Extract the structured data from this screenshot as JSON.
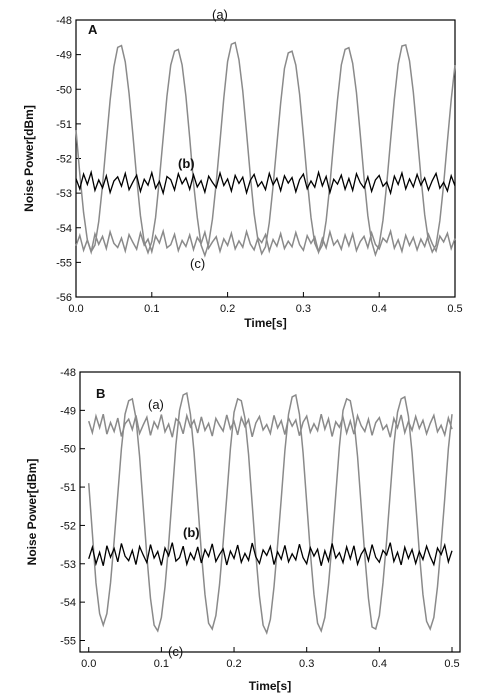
{
  "chart_data": [
    {
      "type": "line",
      "panel": "A",
      "x_label": "Time[s]",
      "y_label": "Noise Power[dBm]",
      "x": [
        0,
        0.005,
        0.01,
        0.015,
        0.02,
        0.025,
        0.03,
        0.035,
        0.04,
        0.045,
        0.05,
        0.055,
        0.06,
        0.065,
        0.07,
        0.075,
        0.08,
        0.085,
        0.09,
        0.095,
        0.1,
        0.105,
        0.11,
        0.115,
        0.12,
        0.125,
        0.13,
        0.135,
        0.14,
        0.145,
        0.15,
        0.155,
        0.16,
        0.165,
        0.17,
        0.175,
        0.18,
        0.185,
        0.19,
        0.195,
        0.2,
        0.205,
        0.21,
        0.215,
        0.22,
        0.225,
        0.23,
        0.235,
        0.24,
        0.245,
        0.25,
        0.255,
        0.26,
        0.265,
        0.27,
        0.275,
        0.28,
        0.285,
        0.29,
        0.295,
        0.3,
        0.305,
        0.31,
        0.315,
        0.32,
        0.325,
        0.33,
        0.335,
        0.34,
        0.345,
        0.35,
        0.355,
        0.36,
        0.365,
        0.37,
        0.375,
        0.38,
        0.385,
        0.39,
        0.395,
        0.4,
        0.405,
        0.41,
        0.415,
        0.42,
        0.425,
        0.43,
        0.435,
        0.44,
        0.445,
        0.45,
        0.455,
        0.46,
        0.465,
        0.47,
        0.475,
        0.48,
        0.485,
        0.49,
        0.495,
        0.5
      ],
      "series": [
        {
          "name": "(a)",
          "color": "#8a8a8a",
          "values": [
            -51.18,
            -52.44,
            -53.56,
            -54.36,
            -54.69,
            -54.5,
            -53.82,
            -52.77,
            -51.53,
            -50.32,
            -49.35,
            -48.79,
            -48.74,
            -49.21,
            -50.12,
            -51.3,
            -52.55,
            -53.65,
            -54.41,
            -54.72,
            -54.4,
            -53.7,
            -52.6,
            -51.4,
            -50.2,
            -49.3,
            -48.9,
            -48.85,
            -49.3,
            -50.2,
            -51.4,
            -52.7,
            -53.7,
            -54.5,
            -54.8,
            -54.45,
            -53.75,
            -52.7,
            -51.5,
            -50.25,
            -49.2,
            -48.7,
            -48.65,
            -49.15,
            -50.05,
            -51.25,
            -52.5,
            -53.6,
            -54.35,
            -54.75,
            -54.55,
            -53.85,
            -52.8,
            -51.6,
            -50.4,
            -49.4,
            -48.95,
            -48.9,
            -49.3,
            -50.15,
            -51.35,
            -52.6,
            -53.7,
            -54.45,
            -54.7,
            -54.5,
            -53.8,
            -52.75,
            -51.5,
            -50.3,
            -49.3,
            -48.85,
            -48.8,
            -49.25,
            -50.1,
            -51.3,
            -52.55,
            -53.65,
            -54.4,
            -54.78,
            -54.48,
            -53.78,
            -52.72,
            -51.48,
            -50.28,
            -49.28,
            -48.75,
            -48.72,
            -49.18,
            -50.08,
            -51.28,
            -52.52,
            -53.62,
            -54.38,
            -54.7,
            -54.5,
            -53.8,
            -52.75,
            -51.5,
            -50.3,
            -49.3
          ]
        },
        {
          "name": "(b)",
          "color": "#000000",
          "values": [
            -52.58,
            -52.88,
            -52.45,
            -52.75,
            -52.4,
            -52.92,
            -52.62,
            -52.85,
            -52.5,
            -52.98,
            -52.65,
            -52.53,
            -52.8,
            -52.43,
            -52.9,
            -52.68,
            -52.48,
            -52.95,
            -52.6,
            -52.77,
            -52.41,
            -52.86,
            -52.66,
            -53.0,
            -52.52,
            -52.61,
            -52.91,
            -52.44,
            -52.73,
            -52.56,
            -52.89,
            -52.47,
            -52.82,
            -52.64,
            -52.97,
            -52.51,
            -52.69,
            -52.84,
            -52.42,
            -52.78,
            -52.59,
            -52.94,
            -52.49,
            -52.72,
            -52.54,
            -52.99,
            -52.63,
            -52.46,
            -52.81,
            -52.67,
            -52.9,
            -52.43,
            -52.76,
            -52.57,
            -52.93,
            -52.5,
            -52.71,
            -52.55,
            -52.96,
            -52.61,
            -52.45,
            -52.87,
            -52.65,
            -52.83,
            -52.4,
            -52.79,
            -52.52,
            -52.98,
            -52.6,
            -52.74,
            -52.48,
            -52.89,
            -52.58,
            -52.92,
            -52.44,
            -52.7,
            -52.85,
            -52.53,
            -52.95,
            -52.62,
            -52.49,
            -52.8,
            -52.68,
            -53.0,
            -52.51,
            -52.75,
            -52.42,
            -52.88,
            -52.59,
            -52.82,
            -52.46,
            -52.77,
            -52.56,
            -52.91,
            -52.64,
            -52.43,
            -52.86,
            -52.69,
            -52.94,
            -52.5,
            -52.79
          ]
        },
        {
          "name": "(c)",
          "color": "#8a8a8a",
          "values": [
            -54.52,
            -54.22,
            -54.65,
            -54.35,
            -54.7,
            -54.18,
            -54.48,
            -54.25,
            -54.6,
            -54.12,
            -54.45,
            -54.57,
            -54.3,
            -54.67,
            -54.2,
            -54.42,
            -54.62,
            -54.15,
            -54.5,
            -54.33,
            -54.69,
            -54.24,
            -54.44,
            -54.1,
            -54.58,
            -54.49,
            -54.19,
            -54.66,
            -54.37,
            -54.54,
            -54.21,
            -54.63,
            -54.28,
            -54.46,
            -54.13,
            -54.59,
            -54.41,
            -54.26,
            -54.68,
            -54.32,
            -54.51,
            -54.16,
            -54.61,
            -54.38,
            -54.56,
            -54.11,
            -54.47,
            -54.64,
            -54.29,
            -54.43,
            -54.2,
            -54.67,
            -54.34,
            -54.53,
            -54.17,
            -54.6,
            -54.39,
            -54.55,
            -54.14,
            -54.49,
            -54.65,
            -54.23,
            -54.45,
            -54.27,
            -54.7,
            -54.31,
            -54.58,
            -54.12,
            -54.5,
            -54.36,
            -54.62,
            -54.21,
            -54.52,
            -54.18,
            -54.66,
            -54.4,
            -54.25,
            -54.57,
            -54.15,
            -54.48,
            -54.61,
            -54.3,
            -54.42,
            -54.1,
            -54.59,
            -54.35,
            -54.68,
            -54.22,
            -54.51,
            -54.28,
            -54.64,
            -54.33,
            -54.54,
            -54.19,
            -54.46,
            -54.67,
            -54.24,
            -54.41,
            -54.16,
            -54.6,
            -54.31
          ]
        }
      ],
      "xlim": [
        0,
        0.5
      ],
      "xticks": [
        {
          "value": 0,
          "label": "0.0"
        },
        0.1,
        0.2,
        0.3,
        0.4,
        0.5
      ],
      "ylim": [
        -56,
        -48
      ],
      "yticks": [
        -56,
        -55,
        -54,
        -53,
        -52,
        -51,
        -50,
        -49,
        -48
      ]
    },
    {
      "type": "line",
      "panel": "B",
      "x_label": "Time[s]",
      "y_label": "Noise Power[dBm]",
      "x": [
        0,
        0.005,
        0.01,
        0.015,
        0.02,
        0.025,
        0.03,
        0.035,
        0.04,
        0.045,
        0.05,
        0.055,
        0.06,
        0.065,
        0.07,
        0.075,
        0.08,
        0.085,
        0.09,
        0.095,
        0.1,
        0.105,
        0.11,
        0.115,
        0.12,
        0.125,
        0.13,
        0.135,
        0.14,
        0.145,
        0.15,
        0.155,
        0.16,
        0.165,
        0.17,
        0.175,
        0.18,
        0.185,
        0.19,
        0.195,
        0.2,
        0.205,
        0.21,
        0.215,
        0.22,
        0.225,
        0.23,
        0.235,
        0.24,
        0.245,
        0.25,
        0.255,
        0.26,
        0.265,
        0.27,
        0.275,
        0.28,
        0.285,
        0.29,
        0.295,
        0.3,
        0.305,
        0.31,
        0.315,
        0.32,
        0.325,
        0.33,
        0.335,
        0.34,
        0.345,
        0.35,
        0.355,
        0.36,
        0.365,
        0.37,
        0.375,
        0.38,
        0.385,
        0.39,
        0.395,
        0.4,
        0.405,
        0.41,
        0.415,
        0.42,
        0.425,
        0.43,
        0.435,
        0.44,
        0.445,
        0.45,
        0.455,
        0.46,
        0.465,
        0.47,
        0.475,
        0.48,
        0.485,
        0.49,
        0.495,
        0.5
      ],
      "series": [
        {
          "name": "(a)",
          "color": "#8a8a8a",
          "values": [
            -50.9,
            -52.2,
            -53.5,
            -54.3,
            -54.6,
            -54.3,
            -53.5,
            -52.4,
            -51.2,
            -50.0,
            -49.1,
            -48.75,
            -48.7,
            -49.2,
            -50.2,
            -51.5,
            -52.8,
            -53.9,
            -54.6,
            -54.75,
            -54.4,
            -53.6,
            -52.5,
            -51.2,
            -49.9,
            -49.0,
            -48.6,
            -48.55,
            -49.1,
            -50.1,
            -51.4,
            -52.7,
            -53.8,
            -54.55,
            -54.7,
            -54.35,
            -53.55,
            -52.45,
            -51.25,
            -50.0,
            -49.05,
            -48.7,
            -48.75,
            -49.2,
            -50.15,
            -51.45,
            -52.75,
            -53.85,
            -54.6,
            -54.8,
            -54.45,
            -53.6,
            -52.5,
            -51.3,
            -50.05,
            -49.1,
            -48.65,
            -48.6,
            -49.1,
            -50.1,
            -51.4,
            -52.7,
            -53.8,
            -54.55,
            -54.75,
            -54.4,
            -53.55,
            -52.45,
            -51.2,
            -49.95,
            -49.0,
            -48.7,
            -48.75,
            -49.25,
            -50.2,
            -51.5,
            -52.8,
            -53.9,
            -54.65,
            -54.7,
            -54.35,
            -53.5,
            -52.4,
            -51.15,
            -49.9,
            -49.05,
            -48.7,
            -48.65,
            -49.15,
            -50.1,
            -51.4,
            -52.7,
            -53.8,
            -54.5,
            -54.7,
            -54.4,
            -53.6,
            -52.5,
            -51.3,
            -50.0,
            -49.1
          ]
        },
        {
          "name": "(b)",
          "color": "#000000",
          "values": [
            -52.87,
            -52.57,
            -53.0,
            -52.7,
            -53.05,
            -52.53,
            -52.83,
            -52.6,
            -52.95,
            -52.47,
            -52.8,
            -52.92,
            -52.65,
            -53.02,
            -52.55,
            -52.77,
            -52.97,
            -52.5,
            -52.85,
            -52.68,
            -53.04,
            -52.59,
            -52.79,
            -52.45,
            -52.93,
            -52.84,
            -52.54,
            -53.01,
            -52.72,
            -52.89,
            -52.56,
            -52.98,
            -52.63,
            -52.81,
            -52.48,
            -52.94,
            -52.76,
            -52.61,
            -53.03,
            -52.67,
            -52.86,
            -52.51,
            -52.96,
            -52.73,
            -52.91,
            -52.46,
            -52.82,
            -52.99,
            -52.64,
            -52.78,
            -52.55,
            -53.02,
            -52.69,
            -52.88,
            -52.52,
            -52.95,
            -52.74,
            -52.9,
            -52.49,
            -52.84,
            -53.0,
            -52.58,
            -52.8,
            -52.62,
            -53.05,
            -52.66,
            -52.93,
            -52.47,
            -52.85,
            -52.71,
            -52.97,
            -52.56,
            -52.87,
            -52.53,
            -53.01,
            -52.75,
            -52.6,
            -52.92,
            -52.5,
            -52.83,
            -52.96,
            -52.65,
            -52.77,
            -52.45,
            -52.94,
            -52.7,
            -53.03,
            -52.57,
            -52.86,
            -52.63,
            -52.99,
            -52.68,
            -52.89,
            -52.54,
            -52.81,
            -53.02,
            -52.59,
            -52.76,
            -52.51,
            -52.95,
            -52.66
          ]
        },
        {
          "name": "(c)",
          "color": "#8a8a8a",
          "values": [
            -49.28,
            -49.58,
            -49.15,
            -49.45,
            -49.1,
            -49.62,
            -49.32,
            -49.55,
            -49.2,
            -49.68,
            -49.35,
            -49.23,
            -49.5,
            -49.13,
            -49.6,
            -49.38,
            -49.18,
            -49.65,
            -49.3,
            -49.47,
            -49.11,
            -49.56,
            -49.36,
            -49.7,
            -49.22,
            -49.31,
            -49.61,
            -49.14,
            -49.43,
            -49.26,
            -49.59,
            -49.17,
            -49.52,
            -49.34,
            -49.67,
            -49.21,
            -49.39,
            -49.54,
            -49.12,
            -49.48,
            -49.29,
            -49.64,
            -49.19,
            -49.42,
            -49.24,
            -49.69,
            -49.33,
            -49.16,
            -49.51,
            -49.37,
            -49.6,
            -49.13,
            -49.46,
            -49.27,
            -49.63,
            -49.2,
            -49.41,
            -49.25,
            -49.66,
            -49.31,
            -49.15,
            -49.57,
            -49.35,
            -49.53,
            -49.1,
            -49.49,
            -49.22,
            -49.68,
            -49.3,
            -49.44,
            -49.18,
            -49.59,
            -49.28,
            -49.62,
            -49.14,
            -49.4,
            -49.55,
            -49.23,
            -49.65,
            -49.32,
            -49.19,
            -49.5,
            -49.38,
            -49.7,
            -49.21,
            -49.45,
            -49.12,
            -49.58,
            -49.29,
            -49.52,
            -49.16,
            -49.47,
            -49.26,
            -49.61,
            -49.34,
            -49.13,
            -49.56,
            -49.39,
            -49.64,
            -49.2,
            -49.49
          ]
        }
      ],
      "xlim": [
        -0.012,
        0.511
      ],
      "xticks": [
        {
          "value": 0,
          "label": "0.0"
        },
        0.1,
        0.2,
        0.3,
        0.4,
        0.5
      ],
      "ylim": [
        -55.3,
        -48
      ],
      "yticks": [
        -55,
        -54,
        -53,
        -52,
        -51,
        -50,
        -49,
        -48
      ]
    }
  ]
}
